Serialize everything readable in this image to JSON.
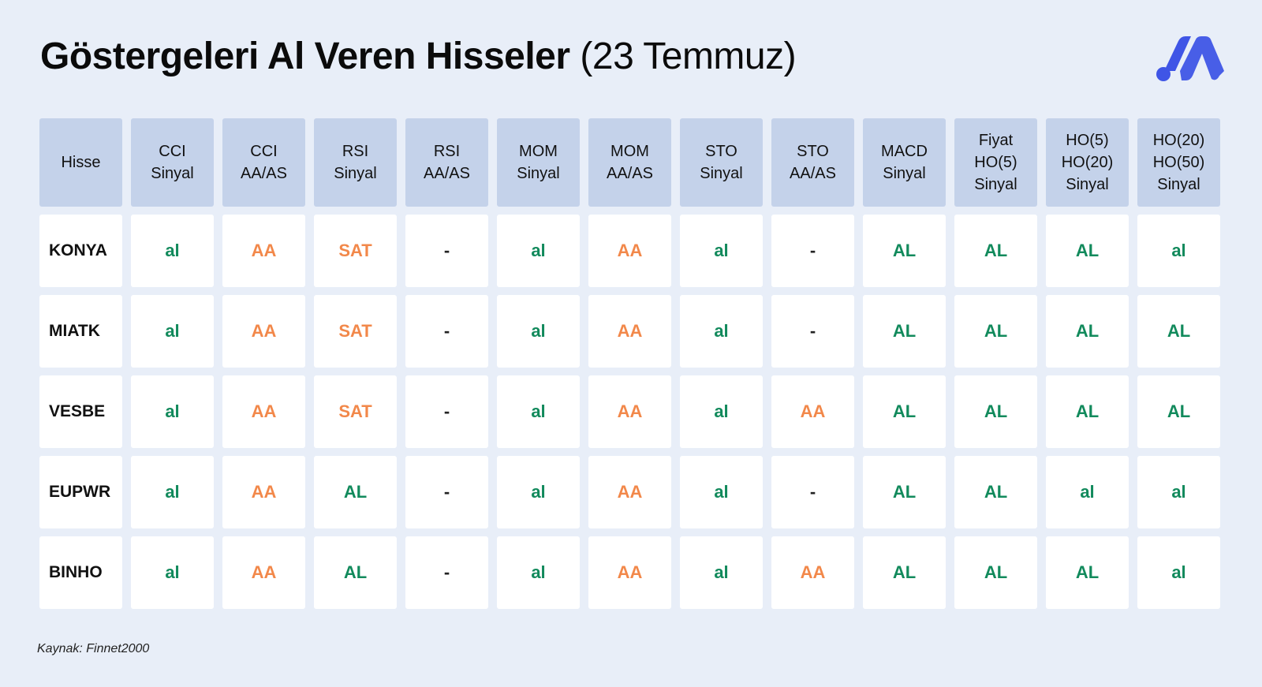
{
  "title": {
    "bold": "Göstergeleri Al Veren Hisseler",
    "light": "(23 Temmuz)"
  },
  "logo": {
    "icon": "brand-logo-icon",
    "color": "#3f55e6"
  },
  "table": {
    "headers": [
      "Hisse",
      "CCI\nSinyal",
      "CCI\nAA/AS",
      "RSI\nSinyal",
      "RSI\nAA/AS",
      "MOM\nSinyal",
      "MOM\nAA/AS",
      "STO\nSinyal",
      "STO\nAA/AS",
      "MACD\nSinyal",
      "Fiyat\nHO(5)\nSinyal",
      "HO(5)\nHO(20)\nSinyal",
      "HO(20)\nHO(50)\nSinyal"
    ],
    "rows": [
      [
        "KONYA",
        "al",
        "AA",
        "SAT",
        "-",
        "al",
        "AA",
        "al",
        "-",
        "AL",
        "AL",
        "AL",
        "al"
      ],
      [
        "MIATK",
        "al",
        "AA",
        "SAT",
        "-",
        "al",
        "AA",
        "al",
        "-",
        "AL",
        "AL",
        "AL",
        "AL"
      ],
      [
        "VESBE",
        "al",
        "AA",
        "SAT",
        "-",
        "al",
        "AA",
        "al",
        "AA",
        "AL",
        "AL",
        "AL",
        "AL"
      ],
      [
        "EUPWR",
        "al",
        "AA",
        "AL",
        "-",
        "al",
        "AA",
        "al",
        "-",
        "AL",
        "AL",
        "al",
        "al"
      ],
      [
        "BINHO",
        "al",
        "AA",
        "AL",
        "-",
        "al",
        "AA",
        "al",
        "AA",
        "AL",
        "AL",
        "AL",
        "al"
      ]
    ]
  },
  "colors": {
    "background": "#e8eef8",
    "header_bg": "#c4d2ea",
    "buy_green": "#128a5c",
    "warn_orange": "#f2884a"
  },
  "source": "Kaynak: Finnet2000"
}
